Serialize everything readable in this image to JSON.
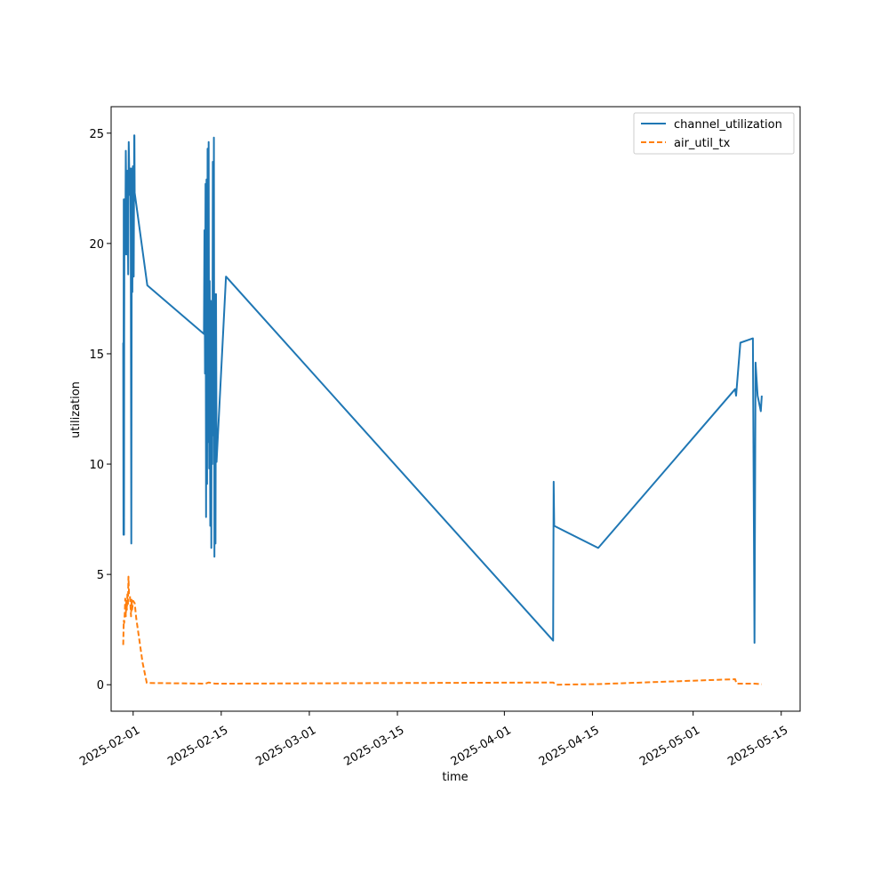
{
  "chart_data": {
    "type": "line",
    "title": "",
    "xlabel": "time",
    "ylabel": "utilization",
    "x_axis_type": "date",
    "xlim": [
      "2025-01-28T12:00",
      "2025-05-18T00:00"
    ],
    "ylim": [
      -1.2,
      26.2
    ],
    "x_ticks": [
      "2025-02-01",
      "2025-02-15",
      "2025-03-01",
      "2025-03-15",
      "2025-04-01",
      "2025-04-15",
      "2025-05-01",
      "2025-05-15"
    ],
    "y_ticks": [
      0,
      5,
      10,
      15,
      20,
      25
    ],
    "grid": false,
    "legend_position": "top-right",
    "series": [
      {
        "name": "channel_utilization",
        "color": "#1f77b4",
        "style": "solid",
        "points": [
          [
            "2025-01-30T10:00",
            15.5
          ],
          [
            "2025-01-30T11:00",
            6.8
          ],
          [
            "2025-01-30T12:00",
            22.0
          ],
          [
            "2025-01-30T13:00",
            6.8
          ],
          [
            "2025-01-30T14:00",
            16.1
          ],
          [
            "2025-01-30T15:00",
            22.0
          ],
          [
            "2025-01-30T18:00",
            19.5
          ],
          [
            "2025-01-30T20:00",
            24.2
          ],
          [
            "2025-01-31T00:00",
            19.5
          ],
          [
            "2025-01-31T02:00",
            23.3
          ],
          [
            "2025-01-31T05:00",
            18.6
          ],
          [
            "2025-01-31T07:00",
            24.6
          ],
          [
            "2025-01-31T11:00",
            22.2
          ],
          [
            "2025-01-31T14:00",
            23.4
          ],
          [
            "2025-01-31T15:00",
            20.5
          ],
          [
            "2025-01-31T17:00",
            6.4
          ],
          [
            "2025-01-31T19:00",
            23.4
          ],
          [
            "2025-01-31T21:00",
            17.8
          ],
          [
            "2025-01-31T23:00",
            23.5
          ],
          [
            "2025-02-01T02:00",
            18.5
          ],
          [
            "2025-02-01T04:00",
            24.9
          ],
          [
            "2025-02-01T05:00",
            24.9
          ],
          [
            "2025-02-01T06:00",
            22.3
          ],
          [
            "2025-02-03T06:00",
            18.1
          ],
          [
            "2025-02-12T06:00",
            15.9
          ],
          [
            "2025-02-12T08:00",
            20.6
          ],
          [
            "2025-02-12T10:00",
            14.1
          ],
          [
            "2025-02-12T12:00",
            22.7
          ],
          [
            "2025-02-12T14:00",
            7.6
          ],
          [
            "2025-02-12T16:00",
            22.9
          ],
          [
            "2025-02-12T18:00",
            9.1
          ],
          [
            "2025-02-12T20:00",
            24.3
          ],
          [
            "2025-02-12T22:00",
            11.0
          ],
          [
            "2025-02-13T00:00",
            24.6
          ],
          [
            "2025-02-13T02:00",
            9.8
          ],
          [
            "2025-02-13T04:00",
            18.3
          ],
          [
            "2025-02-13T06:00",
            7.2
          ],
          [
            "2025-02-13T08:00",
            17.4
          ],
          [
            "2025-02-13T10:00",
            6.2
          ],
          [
            "2025-02-13T12:00",
            17.0
          ],
          [
            "2025-02-13T14:00",
            10.0
          ],
          [
            "2025-02-13T16:00",
            23.7
          ],
          [
            "2025-02-13T18:00",
            11.3
          ],
          [
            "2025-02-13T20:00",
            24.8
          ],
          [
            "2025-02-13T22:00",
            5.8
          ],
          [
            "2025-02-14T00:00",
            17.7
          ],
          [
            "2025-02-14T02:00",
            6.4
          ],
          [
            "2025-02-14T04:00",
            17.7
          ],
          [
            "2025-02-14T06:00",
            10.1
          ],
          [
            "2025-02-15T18:00",
            18.5
          ],
          [
            "2025-04-08T18:00",
            2.0
          ],
          [
            "2025-04-08T20:00",
            9.2
          ],
          [
            "2025-04-08T22:00",
            7.2
          ],
          [
            "2025-04-15T22:00",
            6.2
          ],
          [
            "2025-05-07T16:00",
            13.4
          ],
          [
            "2025-05-07T20:00",
            13.1
          ],
          [
            "2025-05-08T12:00",
            15.5
          ],
          [
            "2025-05-10T12:00",
            15.7
          ],
          [
            "2025-05-10T18:00",
            1.9
          ],
          [
            "2025-05-10T22:00",
            14.6
          ],
          [
            "2025-05-11T06:00",
            13.1
          ],
          [
            "2025-05-11T18:00",
            12.4
          ],
          [
            "2025-05-11T22:00",
            13.1
          ]
        ]
      },
      {
        "name": "air_util_tx",
        "color": "#ff7f0e",
        "style": "dashed",
        "points": [
          [
            "2025-01-30T10:00",
            1.8
          ],
          [
            "2025-01-30T12:00",
            2.9
          ],
          [
            "2025-01-30T14:00",
            2.8
          ],
          [
            "2025-01-30T16:00",
            3.2
          ],
          [
            "2025-01-30T18:00",
            3.9
          ],
          [
            "2025-01-30T20:00",
            3.1
          ],
          [
            "2025-01-30T22:00",
            3.8
          ],
          [
            "2025-01-31T00:00",
            3.4
          ],
          [
            "2025-01-31T02:00",
            4.1
          ],
          [
            "2025-01-31T04:00",
            3.6
          ],
          [
            "2025-01-31T06:00",
            4.9
          ],
          [
            "2025-01-31T08:00",
            4.1
          ],
          [
            "2025-01-31T12:00",
            4.0
          ],
          [
            "2025-01-31T16:00",
            3.1
          ],
          [
            "2025-01-31T18:00",
            3.9
          ],
          [
            "2025-01-31T20:00",
            3.4
          ],
          [
            "2025-02-01T00:00",
            3.8
          ],
          [
            "2025-02-01T06:00",
            3.7
          ],
          [
            "2025-02-01T12:00",
            3.0
          ],
          [
            "2025-02-02T12:00",
            1.0
          ],
          [
            "2025-02-03T04:00",
            0.08
          ],
          [
            "2025-02-12T12:00",
            0.05
          ],
          [
            "2025-02-13T00:00",
            0.1
          ],
          [
            "2025-02-14T00:00",
            0.05
          ],
          [
            "2025-02-15T18:00",
            0.05
          ],
          [
            "2025-04-08T18:00",
            0.1
          ],
          [
            "2025-04-09T06:00",
            0.0
          ],
          [
            "2025-04-15T22:00",
            0.03
          ],
          [
            "2025-05-07T16:00",
            0.25
          ],
          [
            "2025-05-07T22:00",
            0.05
          ],
          [
            "2025-05-10T18:00",
            0.05
          ],
          [
            "2025-05-11T22:00",
            0.02
          ]
        ]
      }
    ]
  }
}
